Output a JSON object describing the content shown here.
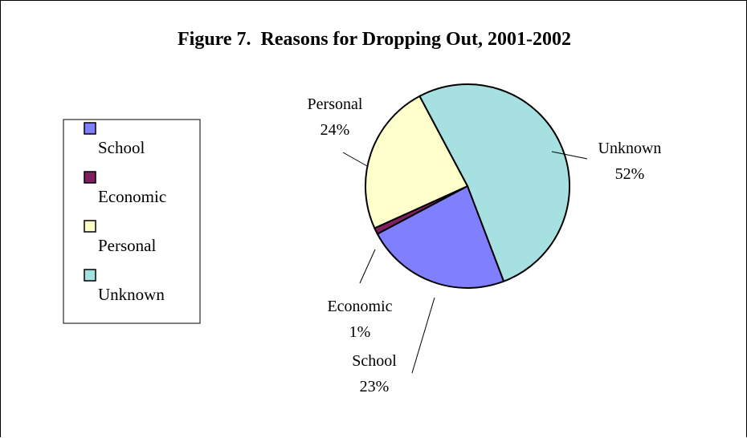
{
  "chart_data": {
    "type": "pie",
    "title": "Figure 7.  Reasons for Dropping Out, 2001-2002",
    "categories": [
      "School",
      "Economic",
      "Personal",
      "Unknown"
    ],
    "values": [
      23,
      1,
      24,
      52
    ],
    "labels": [
      "23%",
      "1%",
      "24%",
      "52%"
    ],
    "colors": [
      "#8080FF",
      "#802060",
      "#FFFFCC",
      "#A6E0E0"
    ],
    "legend": "left"
  }
}
